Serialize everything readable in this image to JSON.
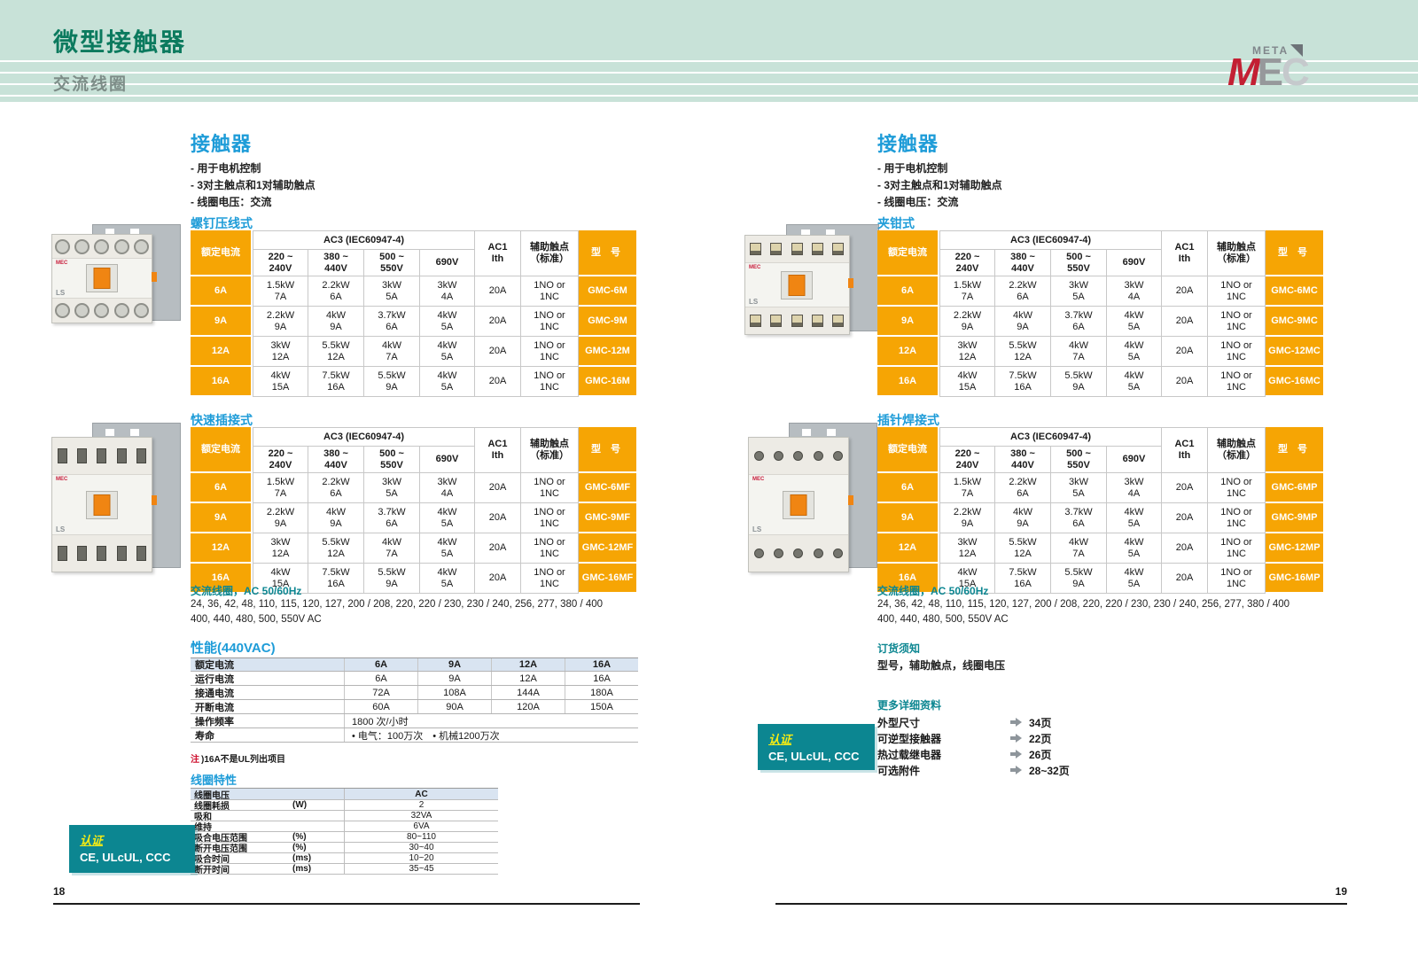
{
  "page_header": {
    "title": "微型接触器",
    "subtitle": "交流线圈",
    "logo_meta": "META",
    "logo_m": "M",
    "logo_e": "E",
    "logo_c": "C"
  },
  "spec_table": {
    "header": {
      "rated": "额定电流",
      "ac3": "AC3 (IEC60947-4)",
      "voltages": [
        [
          "220 ~",
          "240V"
        ],
        [
          "380 ~",
          "440V"
        ],
        [
          "500 ~",
          "550V"
        ],
        [
          "690V"
        ]
      ],
      "ac1": [
        "AC1",
        "Ith"
      ],
      "aux": [
        "辅助触点",
        "（标准）"
      ],
      "model": "型 号"
    },
    "rows": [
      {
        "rated": "6A",
        "cells": [
          [
            "1.5kW",
            "7A"
          ],
          [
            "2.2kW",
            "6A"
          ],
          [
            "3kW",
            "5A"
          ],
          [
            "3kW",
            "4A"
          ]
        ],
        "ac1": "20A",
        "aux": [
          "1NO or",
          "1NC"
        ]
      },
      {
        "rated": "9A",
        "cells": [
          [
            "2.2kW",
            "9A"
          ],
          [
            "4kW",
            "9A"
          ],
          [
            "3.7kW",
            "6A"
          ],
          [
            "4kW",
            "5A"
          ]
        ],
        "ac1": "20A",
        "aux": [
          "1NO or",
          "1NC"
        ]
      },
      {
        "rated": "12A",
        "cells": [
          [
            "3kW",
            "12A"
          ],
          [
            "5.5kW",
            "12A"
          ],
          [
            "4kW",
            "7A"
          ],
          [
            "4kW",
            "5A"
          ]
        ],
        "ac1": "20A",
        "aux": [
          "1NO or",
          "1NC"
        ]
      },
      {
        "rated": "16A",
        "cells": [
          [
            "4kW",
            "15A"
          ],
          [
            "7.5kW",
            "16A"
          ],
          [
            "5.5kW",
            "9A"
          ],
          [
            "4kW",
            "5A"
          ]
        ],
        "ac1": "20A",
        "aux": [
          "1NO or",
          "1NC"
        ]
      }
    ]
  },
  "left_page": {
    "page_number": "18",
    "section_title": "接触器",
    "bullets": [
      "- 用于电机控制",
      "- 3对主触点和1对辅助触点",
      "- 线圈电压：交流"
    ],
    "tables": [
      {
        "title": "螺钉压线式",
        "models": [
          "GMC-6M",
          "GMC-9M",
          "GMC-12M",
          "GMC-16M"
        ]
      },
      {
        "title": "快速插接式",
        "models": [
          "GMC-6MF",
          "GMC-9MF",
          "GMC-12MF",
          "GMC-16MF"
        ]
      }
    ],
    "coil_note": {
      "heading": "交流线圈，AC 50/60Hz",
      "line1": "24, 36, 42, 48, 110, 115, 120, 127, 200 / 208, 220, 220 / 230, 230 / 240, 256, 277, 380 / 400",
      "line2": "400, 440, 480, 500, 550V AC"
    },
    "performance": {
      "title": "性能(440VAC)",
      "header": [
        "额定电流",
        "6A",
        "9A",
        "12A",
        "16A"
      ],
      "rows": [
        [
          "运行电流",
          "6A",
          "9A",
          "12A",
          "16A"
        ],
        [
          "接通电流",
          "72A",
          "108A",
          "144A",
          "180A"
        ],
        [
          "开断电流",
          "60A",
          "90A",
          "120A",
          "150A"
        ]
      ],
      "freq_label": "操作频率",
      "freq_value": "1800 次/小时",
      "life_label": "寿命",
      "life_value": "• 电气：100万次　• 机械1200万次"
    },
    "note_mark": "注",
    "note_text": ")16A不是UL列出项目",
    "coil_chart": {
      "title": "线圈特性",
      "header": [
        "线圈电压",
        "AC"
      ],
      "rows": [
        {
          "label": "线圈耗损",
          "unit": "(W)",
          "value": "2"
        },
        {
          "label": "吸和",
          "unit": "",
          "value": "32VA"
        },
        {
          "label": "维持",
          "unit": "",
          "value": "6VA"
        },
        {
          "label": "吸合电压范围",
          "unit": "(%)",
          "value": "80~110"
        },
        {
          "label": "断开电压范围",
          "unit": "(%)",
          "value": "30~40"
        },
        {
          "label": "吸合时间",
          "unit": "(ms)",
          "value": "10~20"
        },
        {
          "label": "断开时间",
          "unit": "(ms)",
          "value": "35~45"
        }
      ]
    },
    "cert": {
      "label": "认证",
      "value": "CE, ULcUL, CCC"
    }
  },
  "right_page": {
    "page_number": "19",
    "section_title": "接触器",
    "bullets": [
      "- 用于电机控制",
      "- 3对主触点和1对辅助触点",
      "- 线圈电压：交流"
    ],
    "tables": [
      {
        "title": "夹钳式",
        "models": [
          "GMC-6MC",
          "GMC-9MC",
          "GMC-12MC",
          "GMC-16MC"
        ]
      },
      {
        "title": "插针焊接式",
        "models": [
          "GMC-6MP",
          "GMC-9MP",
          "GMC-12MP",
          "GMC-16MP"
        ]
      }
    ],
    "coil_note": {
      "heading": "交流线圈，AC 50/60Hz",
      "line1": "24, 36, 42, 48, 110, 115, 120, 127, 200 / 208, 220, 220 / 230, 230 / 240, 256, 277, 380 / 400",
      "line2": "400, 440, 480, 500, 550V AC"
    },
    "ordering": {
      "title": "订货须知",
      "text": "型号，辅助触点，线圈电压"
    },
    "more_info": {
      "title": "更多详细资料",
      "items": [
        {
          "label": "外型尺寸",
          "page": "34页"
        },
        {
          "label": "可逆型接触器",
          "page": "22页"
        },
        {
          "label": "热过载继电器",
          "page": "26页"
        },
        {
          "label": "可选附件",
          "page": "28~32页"
        }
      ]
    },
    "cert": {
      "label": "认证",
      "value": "CE, ULcUL, CCC"
    }
  },
  "colors": {
    "accent_orange": "#F6A504",
    "teal": "#0C8691",
    "blue": "#1E9CD8",
    "note_red": "#CE0E2D",
    "band_green": "#C8E2D8",
    "title_green": "#0B7A5E"
  }
}
